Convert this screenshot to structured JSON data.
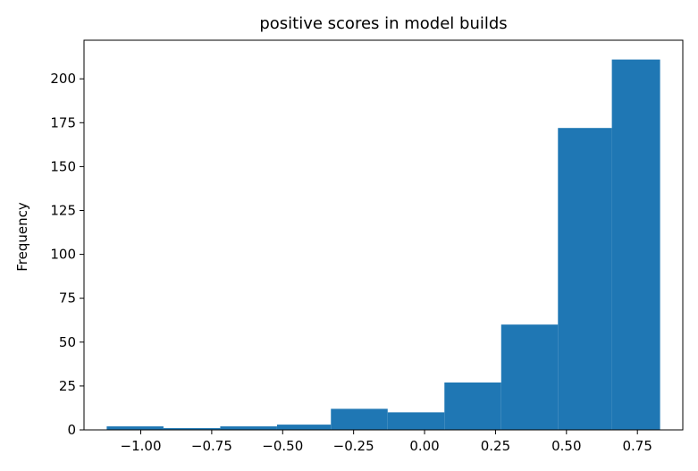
{
  "chart_data": {
    "type": "bar",
    "title": "positive scores in model builds",
    "xlabel": "",
    "ylabel": "Frequency",
    "bins": [
      {
        "x0": -1.12,
        "x1": -0.92,
        "value": 2
      },
      {
        "x0": -0.92,
        "x1": -0.72,
        "value": 1
      },
      {
        "x0": -0.72,
        "x1": -0.52,
        "value": 2
      },
      {
        "x0": -0.52,
        "x1": -0.33,
        "value": 3
      },
      {
        "x0": -0.33,
        "x1": -0.13,
        "value": 12
      },
      {
        "x0": -0.13,
        "x1": 0.07,
        "value": 10
      },
      {
        "x0": 0.07,
        "x1": 0.27,
        "value": 27
      },
      {
        "x0": 0.27,
        "x1": 0.47,
        "value": 60
      },
      {
        "x0": 0.47,
        "x1": 0.66,
        "value": 172
      },
      {
        "x0": 0.66,
        "x1": 0.83,
        "value": 211
      }
    ],
    "xlim": [
      -1.2,
      0.91
    ],
    "ylim": [
      0,
      222
    ],
    "x_ticks": [
      -1.0,
      -0.75,
      -0.5,
      -0.25,
      0.0,
      0.25,
      0.5,
      0.75
    ],
    "x_tick_labels": [
      "−1.00",
      "−0.75",
      "−0.50",
      "−0.25",
      "0.00",
      "0.25",
      "0.50",
      "0.75"
    ],
    "y_ticks": [
      0,
      25,
      50,
      75,
      100,
      125,
      150,
      175,
      200
    ],
    "y_tick_labels": [
      "0",
      "25",
      "50",
      "75",
      "100",
      "125",
      "150",
      "175",
      "200"
    ],
    "bar_color": "#1f77b4",
    "grid": false,
    "legend": null
  }
}
